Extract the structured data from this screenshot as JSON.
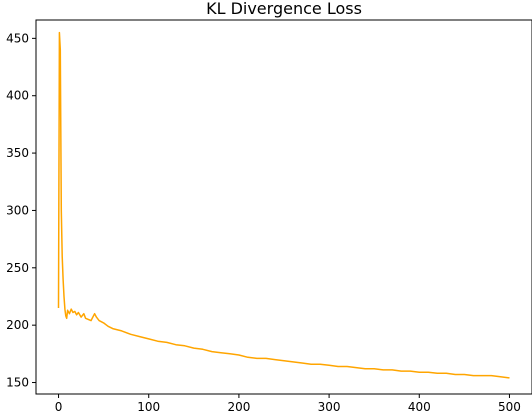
{
  "chart_data": {
    "type": "line",
    "title": "KL Divergence Loss",
    "xlabel": "",
    "ylabel": "",
    "xlim": [
      -25,
      525
    ],
    "ylim": [
      140,
      466
    ],
    "x_ticks": [
      0,
      100,
      200,
      300,
      400,
      500
    ],
    "y_ticks": [
      150,
      200,
      250,
      300,
      350,
      400,
      450
    ],
    "grid": false,
    "legend": "none",
    "series": [
      {
        "color": "#ffa500",
        "x": [
          0,
          1,
          2,
          3,
          4,
          5,
          6,
          7,
          8,
          9,
          10,
          12,
          14,
          16,
          18,
          20,
          22,
          25,
          28,
          30,
          33,
          36,
          40,
          42,
          45,
          50,
          55,
          60,
          70,
          80,
          90,
          100,
          110,
          120,
          130,
          140,
          150,
          160,
          170,
          180,
          190,
          200,
          210,
          220,
          230,
          240,
          250,
          260,
          270,
          280,
          290,
          300,
          310,
          320,
          330,
          340,
          350,
          360,
          370,
          380,
          390,
          400,
          410,
          420,
          430,
          440,
          450,
          460,
          470,
          480,
          490,
          500
        ],
        "y": [
          215,
          455,
          440,
          300,
          260,
          240,
          225,
          214,
          208,
          206,
          213,
          210,
          214,
          211,
          212,
          209,
          211,
          207,
          210,
          206,
          205,
          204,
          210,
          207,
          204,
          202,
          199,
          197,
          195,
          192,
          190,
          188,
          186,
          185,
          183,
          182,
          180,
          179,
          177,
          176,
          175,
          174,
          172,
          171,
          171,
          170,
          169,
          168,
          167,
          166,
          166,
          165,
          164,
          164,
          163,
          162,
          162,
          161,
          161,
          160,
          160,
          159,
          159,
          158,
          158,
          157,
          157,
          156,
          156,
          156,
          155,
          154
        ]
      }
    ]
  }
}
